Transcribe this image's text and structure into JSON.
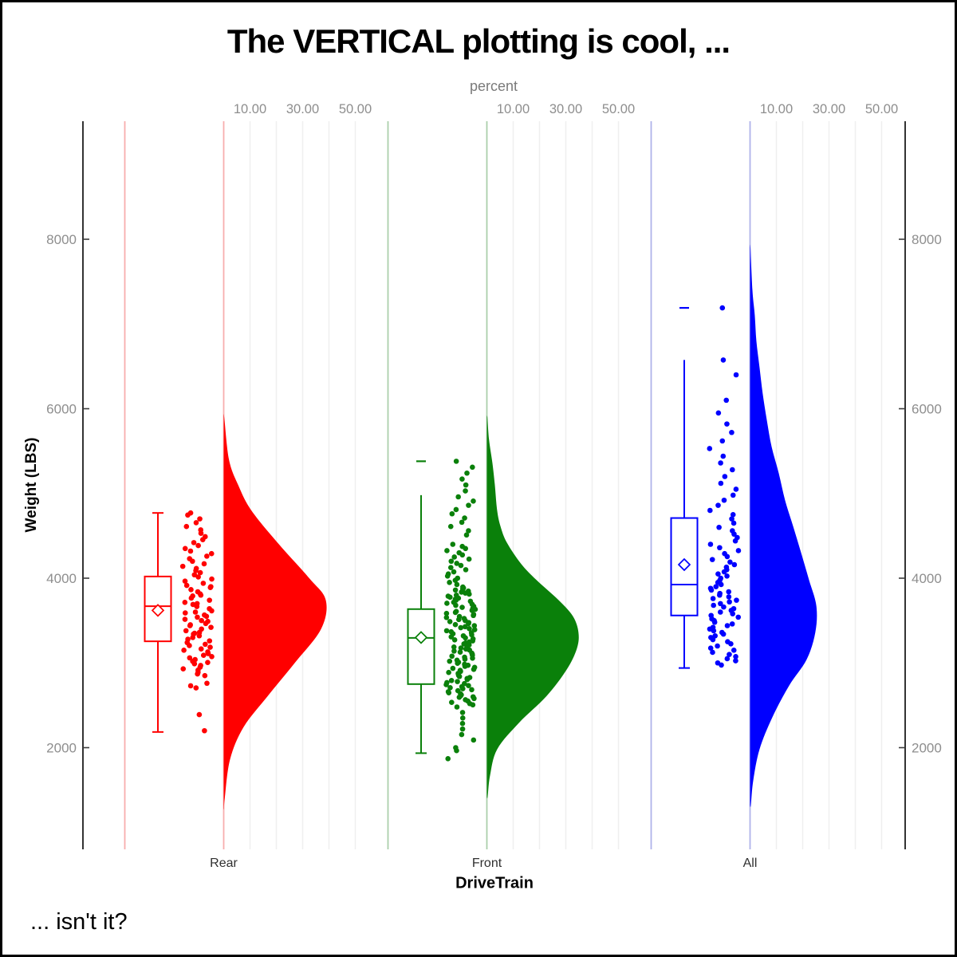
{
  "title": "The VERTICAL plotting is cool, ...",
  "footnote": "... isn't it?",
  "axes": {
    "top_label": "percent",
    "y_label": "Weight (LBS)",
    "x_label": "DriveTrain",
    "y_tick_labels": [
      "2000",
      "4000",
      "6000",
      "8000"
    ],
    "y_tick_values": [
      2000,
      4000,
      6000,
      8000
    ],
    "top_tick_labels": [
      "10.00",
      "30.00",
      "50.00"
    ],
    "top_tick_values": [
      10,
      30,
      50
    ],
    "top_grid_values": [
      10,
      20,
      30,
      40,
      50
    ]
  },
  "colors": {
    "background": "#FFFFFF",
    "frame": "#000000",
    "axis_line": "#000000",
    "tick": "#3C3C3C",
    "gridline": "#EFEFEF",
    "tick_label": "#8E8E8E",
    "category_label": "#303030",
    "top_axis_label": "#7A7A7A",
    "box_fill": "#FFFFFF"
  },
  "chart_data": {
    "type": "raincloud",
    "description": "Half-violin density (percent axis) + box plot with mean diamond + jittered points of Weight (LBS) by DriveTrain",
    "x_variable": "DriveTrain",
    "y_variable": "Weight (LBS)",
    "y_range_shown": [
      2000,
      8000
    ],
    "percent_axis_ticks": [
      10,
      30,
      50
    ],
    "x_categories": [
      "Rear",
      "Front",
      "All"
    ],
    "groups": [
      {
        "name": "Rear",
        "color": "#FF0000",
        "light_color": "#F7AEAE",
        "box": {
          "mean": 3620,
          "median": 3670,
          "q1": 3255,
          "q3": 4020,
          "whisker_low": 2185,
          "whisker_high": 4770,
          "cap_low": true,
          "cap_high": true,
          "outliers": []
        },
        "violin": [
          [
            5900,
            0.2
          ],
          [
            5400,
            2.0
          ],
          [
            5100,
            5.5
          ],
          [
            4800,
            10.5
          ],
          [
            4400,
            21.0
          ],
          [
            4000,
            32.5
          ],
          [
            3740,
            38.8
          ],
          [
            3400,
            37.0
          ],
          [
            3000,
            27.0
          ],
          [
            2600,
            16.5
          ],
          [
            2240,
            7.5
          ],
          [
            1860,
            2.4
          ],
          [
            1400,
            0.4
          ],
          [
            1280,
            0.1
          ]
        ],
        "points": [
          2200,
          2390,
          2705,
          2730,
          2760,
          2850,
          2870,
          2890,
          2915,
          2930,
          2950,
          2970,
          2990,
          3005,
          3020,
          3040,
          3060,
          3075,
          3090,
          3110,
          3130,
          3150,
          3165,
          3185,
          3205,
          3220,
          3240,
          3260,
          3280,
          3300,
          3320,
          3340,
          3350,
          3360,
          3380,
          3400,
          3420,
          3440,
          3450,
          3465,
          3490,
          3500,
          3515,
          3540,
          3550,
          3565,
          3590,
          3600,
          3615,
          3640,
          3665,
          3690,
          3700,
          3715,
          3740,
          3765,
          3790,
          3800,
          3815,
          3840,
          3865,
          3890,
          3900,
          3915,
          3940,
          3965,
          3990,
          4015,
          4040,
          4065,
          4090,
          4115,
          4140,
          4170,
          4200,
          4230,
          4260,
          4290,
          4320,
          4350,
          4385,
          4420,
          4455,
          4490,
          4530,
          4570,
          4610,
          4655,
          4700,
          4745,
          4770
        ]
      },
      {
        "name": "Front",
        "color": "#0A800A",
        "light_color": "#ABCFAB",
        "box": {
          "mean": 3300,
          "median": 3295,
          "q1": 2750,
          "q3": 3635,
          "whisker_low": 1935,
          "whisker_high": 4980,
          "cap_low": true,
          "cap_high": false,
          "outliers": [
            5380
          ]
        },
        "violin": [
          [
            5900,
            0.2
          ],
          [
            5640,
            0.8
          ],
          [
            5360,
            2.1
          ],
          [
            5110,
            3.0
          ],
          [
            4800,
            3.9
          ],
          [
            4610,
            5.2
          ],
          [
            4420,
            7.6
          ],
          [
            4170,
            13.0
          ],
          [
            3980,
            18.8
          ],
          [
            3740,
            27.3
          ],
          [
            3550,
            32.7
          ],
          [
            3360,
            34.8
          ],
          [
            3170,
            34.2
          ],
          [
            2920,
            30.3
          ],
          [
            2610,
            22.7
          ],
          [
            2290,
            12.1
          ],
          [
            1980,
            3.9
          ],
          [
            1670,
            1.2
          ],
          [
            1420,
            0.3
          ]
        ],
        "points": [
          1870,
          1965,
          2000,
          2090,
          2155,
          2220,
          2285,
          2350,
          2415,
          2480,
          2505,
          2520,
          2535,
          2550,
          2565,
          2580,
          2595,
          2600,
          2612,
          2624,
          2636,
          2648,
          2660,
          2672,
          2684,
          2696,
          2708,
          2720,
          2732,
          2744,
          2756,
          2768,
          2780,
          2792,
          2804,
          2816,
          2828,
          2840,
          2852,
          2864,
          2876,
          2888,
          2900,
          2912,
          2924,
          2936,
          2948,
          2960,
          2972,
          2984,
          2996,
          3008,
          3020,
          3032,
          3044,
          3056,
          3068,
          3080,
          3092,
          3104,
          3116,
          3128,
          3140,
          3152,
          3164,
          3176,
          3188,
          3200,
          3212,
          3224,
          3236,
          3248,
          3260,
          3272,
          3284,
          3296,
          3308,
          3320,
          3332,
          3344,
          3356,
          3368,
          3380,
          3392,
          3404,
          3416,
          3428,
          3440,
          3452,
          3464,
          3476,
          3488,
          3500,
          3512,
          3524,
          3536,
          3548,
          3560,
          3572,
          3584,
          3596,
          3608,
          3620,
          3632,
          3644,
          3656,
          3668,
          3680,
          3692,
          3704,
          3716,
          3728,
          3740,
          3752,
          3764,
          3776,
          3788,
          3800,
          3812,
          3824,
          3836,
          3848,
          3860,
          3872,
          3884,
          3896,
          3925,
          3950,
          3975,
          4000,
          4025,
          4050,
          4075,
          4100,
          4125,
          4150,
          4175,
          4200,
          4225,
          4250,
          4275,
          4300,
          4325,
          4350,
          4375,
          4400,
          4510,
          4560,
          4610,
          4660,
          4710,
          4760,
          4810,
          4860,
          4910,
          4960,
          5030,
          5100,
          5170,
          5240,
          5310,
          5380
        ]
      },
      {
        "name": "All",
        "color": "#0000FF",
        "light_color": "#AFB3EA",
        "box": {
          "mean": 4160,
          "median": 3925,
          "q1": 3560,
          "q3": 4710,
          "whisker_low": 2940,
          "whisker_high": 6575,
          "cap_low": true,
          "cap_high": false,
          "outliers": [
            7190
          ]
        },
        "violin": [
          [
            7900,
            0.15
          ],
          [
            7400,
            0.9
          ],
          [
            7100,
            1.8
          ],
          [
            6800,
            2.4
          ],
          [
            6490,
            3.6
          ],
          [
            6180,
            4.8
          ],
          [
            5860,
            6.4
          ],
          [
            5550,
            8.2
          ],
          [
            5240,
            10.9
          ],
          [
            4920,
            13.3
          ],
          [
            4610,
            16.4
          ],
          [
            4300,
            19.4
          ],
          [
            3980,
            22.4
          ],
          [
            3670,
            25.2
          ],
          [
            3360,
            24.8
          ],
          [
            3040,
            21.5
          ],
          [
            2730,
            14.8
          ],
          [
            2360,
            8.5
          ],
          [
            1980,
            3.6
          ],
          [
            1610,
            1.2
          ],
          [
            1320,
            0.3
          ]
        ],
        "points": [
          2975,
          3000,
          3025,
          3050,
          3075,
          3100,
          3125,
          3150,
          3175,
          3200,
          3225,
          3250,
          3275,
          3300,
          3320,
          3340,
          3360,
          3380,
          3400,
          3420,
          3440,
          3460,
          3480,
          3500,
          3520,
          3540,
          3560,
          3580,
          3600,
          3620,
          3640,
          3660,
          3680,
          3700,
          3720,
          3740,
          3760,
          3780,
          3800,
          3820,
          3840,
          3860,
          3880,
          3900,
          3925,
          3950,
          3975,
          4000,
          4025,
          4050,
          4075,
          4100,
          4130,
          4160,
          4190,
          4220,
          4255,
          4290,
          4325,
          4360,
          4400,
          4440,
          4480,
          4520,
          4560,
          4600,
          4650,
          4700,
          4750,
          4800,
          4860,
          4920,
          4980,
          5050,
          5120,
          5200,
          5280,
          5360,
          5440,
          5530,
          5620,
          5720,
          5820,
          5950,
          6100,
          6400,
          6575,
          7190
        ]
      }
    ]
  }
}
